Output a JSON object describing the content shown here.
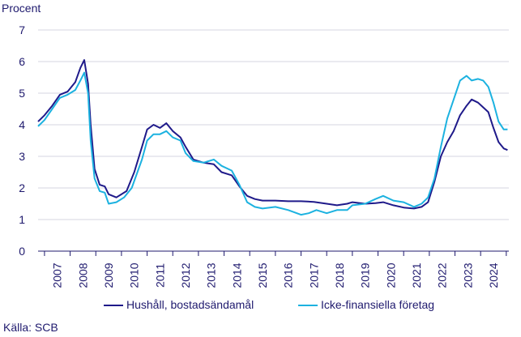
{
  "chart_data": {
    "type": "line",
    "ylabel": "Procent",
    "ylim": [
      0,
      7
    ],
    "yticks": [
      0,
      1,
      2,
      3,
      4,
      5,
      6,
      7
    ],
    "x_range": [
      2006.75,
      2025.1
    ],
    "x_tick_labels": [
      "2007",
      "2008",
      "2009",
      "2010",
      "2011",
      "2012",
      "2013",
      "2014",
      "2015",
      "2016",
      "2017",
      "2018",
      "2019",
      "2020",
      "2021",
      "2022",
      "2023",
      "2024"
    ],
    "grid": "horizontal",
    "legend_position": "bottom",
    "series": [
      {
        "name": "Hushåll, bostadsändamål",
        "color": "#1f1a8a",
        "points": [
          [
            2006.75,
            4.1
          ],
          [
            2007.0,
            4.3
          ],
          [
            2007.3,
            4.6
          ],
          [
            2007.6,
            4.95
          ],
          [
            2007.9,
            5.05
          ],
          [
            2008.2,
            5.35
          ],
          [
            2008.4,
            5.8
          ],
          [
            2008.55,
            6.05
          ],
          [
            2008.7,
            5.3
          ],
          [
            2008.8,
            4.0
          ],
          [
            2008.95,
            2.6
          ],
          [
            2009.15,
            2.1
          ],
          [
            2009.35,
            2.05
          ],
          [
            2009.5,
            1.8
          ],
          [
            2009.8,
            1.7
          ],
          [
            2010.2,
            1.9
          ],
          [
            2010.5,
            2.5
          ],
          [
            2010.8,
            3.3
          ],
          [
            2011.0,
            3.85
          ],
          [
            2011.25,
            4.0
          ],
          [
            2011.5,
            3.9
          ],
          [
            2011.75,
            4.05
          ],
          [
            2012.0,
            3.8
          ],
          [
            2012.3,
            3.6
          ],
          [
            2012.5,
            3.3
          ],
          [
            2012.8,
            2.9
          ],
          [
            2013.2,
            2.8
          ],
          [
            2013.6,
            2.75
          ],
          [
            2013.9,
            2.5
          ],
          [
            2014.3,
            2.4
          ],
          [
            2014.6,
            2.05
          ],
          [
            2014.9,
            1.75
          ],
          [
            2015.2,
            1.65
          ],
          [
            2015.5,
            1.6
          ],
          [
            2016.0,
            1.6
          ],
          [
            2016.5,
            1.58
          ],
          [
            2017.0,
            1.58
          ],
          [
            2017.5,
            1.56
          ],
          [
            2018.0,
            1.5
          ],
          [
            2018.4,
            1.45
          ],
          [
            2018.8,
            1.5
          ],
          [
            2019.0,
            1.55
          ],
          [
            2019.5,
            1.5
          ],
          [
            2019.9,
            1.52
          ],
          [
            2020.2,
            1.55
          ],
          [
            2020.6,
            1.45
          ],
          [
            2021.0,
            1.38
          ],
          [
            2021.4,
            1.35
          ],
          [
            2021.7,
            1.4
          ],
          [
            2021.95,
            1.55
          ],
          [
            2022.2,
            2.2
          ],
          [
            2022.45,
            3.0
          ],
          [
            2022.7,
            3.45
          ],
          [
            2022.95,
            3.8
          ],
          [
            2023.2,
            4.3
          ],
          [
            2023.45,
            4.6
          ],
          [
            2023.65,
            4.8
          ],
          [
            2023.9,
            4.7
          ],
          [
            2024.1,
            4.55
          ],
          [
            2024.3,
            4.4
          ],
          [
            2024.5,
            3.9
          ],
          [
            2024.7,
            3.45
          ],
          [
            2024.9,
            3.25
          ],
          [
            2025.05,
            3.2
          ]
        ]
      },
      {
        "name": "Icke-finansiella företag",
        "color": "#1cb2e0",
        "points": [
          [
            2006.75,
            3.95
          ],
          [
            2007.0,
            4.15
          ],
          [
            2007.3,
            4.5
          ],
          [
            2007.6,
            4.85
          ],
          [
            2007.9,
            4.95
          ],
          [
            2008.2,
            5.1
          ],
          [
            2008.4,
            5.4
          ],
          [
            2008.55,
            5.65
          ],
          [
            2008.7,
            5.0
          ],
          [
            2008.8,
            3.5
          ],
          [
            2008.95,
            2.3
          ],
          [
            2009.15,
            1.9
          ],
          [
            2009.35,
            1.85
          ],
          [
            2009.5,
            1.5
          ],
          [
            2009.8,
            1.55
          ],
          [
            2010.1,
            1.7
          ],
          [
            2010.4,
            2.0
          ],
          [
            2010.8,
            2.9
          ],
          [
            2011.0,
            3.5
          ],
          [
            2011.25,
            3.7
          ],
          [
            2011.5,
            3.7
          ],
          [
            2011.75,
            3.8
          ],
          [
            2012.0,
            3.6
          ],
          [
            2012.3,
            3.5
          ],
          [
            2012.5,
            3.1
          ],
          [
            2012.8,
            2.85
          ],
          [
            2013.2,
            2.8
          ],
          [
            2013.6,
            2.9
          ],
          [
            2013.9,
            2.7
          ],
          [
            2014.3,
            2.55
          ],
          [
            2014.6,
            2.1
          ],
          [
            2014.9,
            1.55
          ],
          [
            2015.2,
            1.4
          ],
          [
            2015.5,
            1.35
          ],
          [
            2016.0,
            1.4
          ],
          [
            2016.5,
            1.3
          ],
          [
            2017.0,
            1.15
          ],
          [
            2017.3,
            1.2
          ],
          [
            2017.6,
            1.3
          ],
          [
            2018.0,
            1.2
          ],
          [
            2018.4,
            1.3
          ],
          [
            2018.8,
            1.3
          ],
          [
            2019.0,
            1.45
          ],
          [
            2019.5,
            1.5
          ],
          [
            2019.9,
            1.65
          ],
          [
            2020.2,
            1.75
          ],
          [
            2020.6,
            1.6
          ],
          [
            2021.0,
            1.55
          ],
          [
            2021.4,
            1.4
          ],
          [
            2021.7,
            1.5
          ],
          [
            2021.95,
            1.7
          ],
          [
            2022.2,
            2.3
          ],
          [
            2022.45,
            3.3
          ],
          [
            2022.7,
            4.2
          ],
          [
            2022.95,
            4.8
          ],
          [
            2023.2,
            5.4
          ],
          [
            2023.45,
            5.55
          ],
          [
            2023.65,
            5.4
          ],
          [
            2023.9,
            5.45
          ],
          [
            2024.1,
            5.4
          ],
          [
            2024.3,
            5.2
          ],
          [
            2024.5,
            4.7
          ],
          [
            2024.7,
            4.1
          ],
          [
            2024.9,
            3.85
          ],
          [
            2025.05,
            3.85
          ]
        ]
      }
    ]
  },
  "footer": {
    "source": "Källa: SCB"
  }
}
